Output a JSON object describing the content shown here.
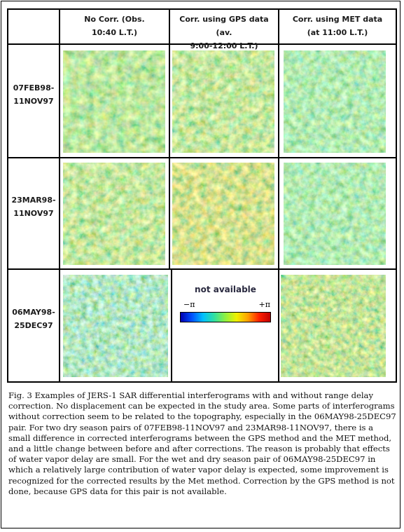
{
  "figure": {
    "column_headers": [
      {
        "line1": "No Corr.  (Obs.",
        "line2": "10:40 L.T.)"
      },
      {
        "line1": "Corr. using GPS data (av.",
        "line2": "9:00-12:00 L.T.)"
      },
      {
        "line1": "Corr. using MET data",
        "line2": "(at 11:00 L.T.)"
      }
    ],
    "row_labels": [
      {
        "line1": "07FEB98-",
        "line2": "11NOV97"
      },
      {
        "line1": "23MAR98-",
        "line2": "11NOV97"
      },
      {
        "line1": "06MAY98-",
        "line2": "25DEC97"
      }
    ],
    "not_available_text": "not available",
    "colorbar": {
      "min_label": "−π",
      "max_label": "+π",
      "colors": [
        "#0000b0",
        "#0050ff",
        "#00c0ff",
        "#30e0a0",
        "#90f040",
        "#f0f000",
        "#ffa000",
        "#ff2000",
        "#c00000"
      ]
    }
  },
  "caption": "Fig. 3 Examples of JERS-1 SAR differential interferograms with and without range delay correction. No displacement can be expected in the study area. Some parts of interferograms without correction seem to be related to the topography, especially in the 06MAY98-25DEC97 pair. For two dry season pairs of 07FEB98-11NOV97 and 23MAR98-11NOV97, there is a small difference in corrected interferograms between the GPS method and the MET method, and a little change between before and after corrections. The reason is probably that effects of water vapor delay are small. For the wet and dry season pair of 06MAY98-25DEC97 in which a relatively large contribution of water vapor delay is expected, some improvement is recognized for the corrected results by the Met method. Correction by the GPS method is not done, because GPS data for this pair is not available."
}
